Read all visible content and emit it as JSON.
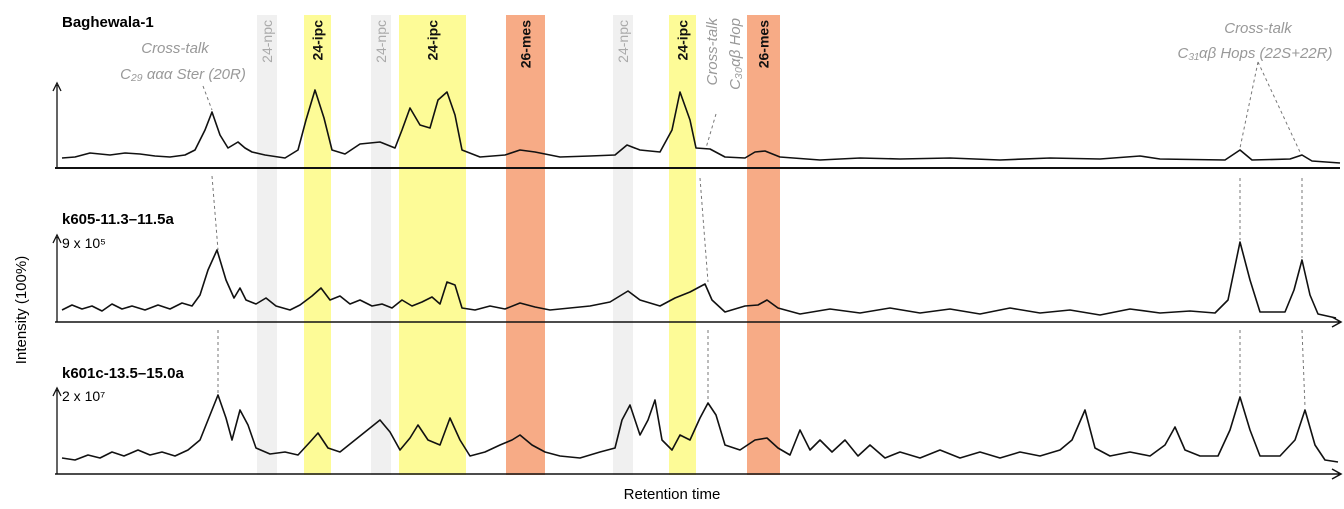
{
  "samples": [
    {
      "name": "Baghewala-1"
    },
    {
      "name": "k605-11.3–11.5a",
      "scale": "9 x 10⁵"
    },
    {
      "name": "k601c-13.5–15.0a",
      "scale": "2 x 10⁷"
    }
  ],
  "bands": [
    {
      "label": "24-npc"
    },
    {
      "label": "24-ipc"
    },
    {
      "label": "24-npc"
    },
    {
      "label": "24-ipc"
    },
    {
      "label": "26-mes"
    },
    {
      "label": "24-npc"
    },
    {
      "label": "24-ipc"
    },
    {
      "label": "26-mes"
    }
  ],
  "annotations": [
    {
      "line1": "Cross-talk",
      "line2": "C₂₉ ααα Ster (20R)"
    },
    {
      "line1": "Cross-talk",
      "line2": "C₃₀αβ Hop"
    },
    {
      "line1": "Cross-talk",
      "line2": "C₃₁αβ Hops (22S+22R)"
    }
  ],
  "y_label": "Intensity (100%)",
  "x_label": "Retention time"
}
